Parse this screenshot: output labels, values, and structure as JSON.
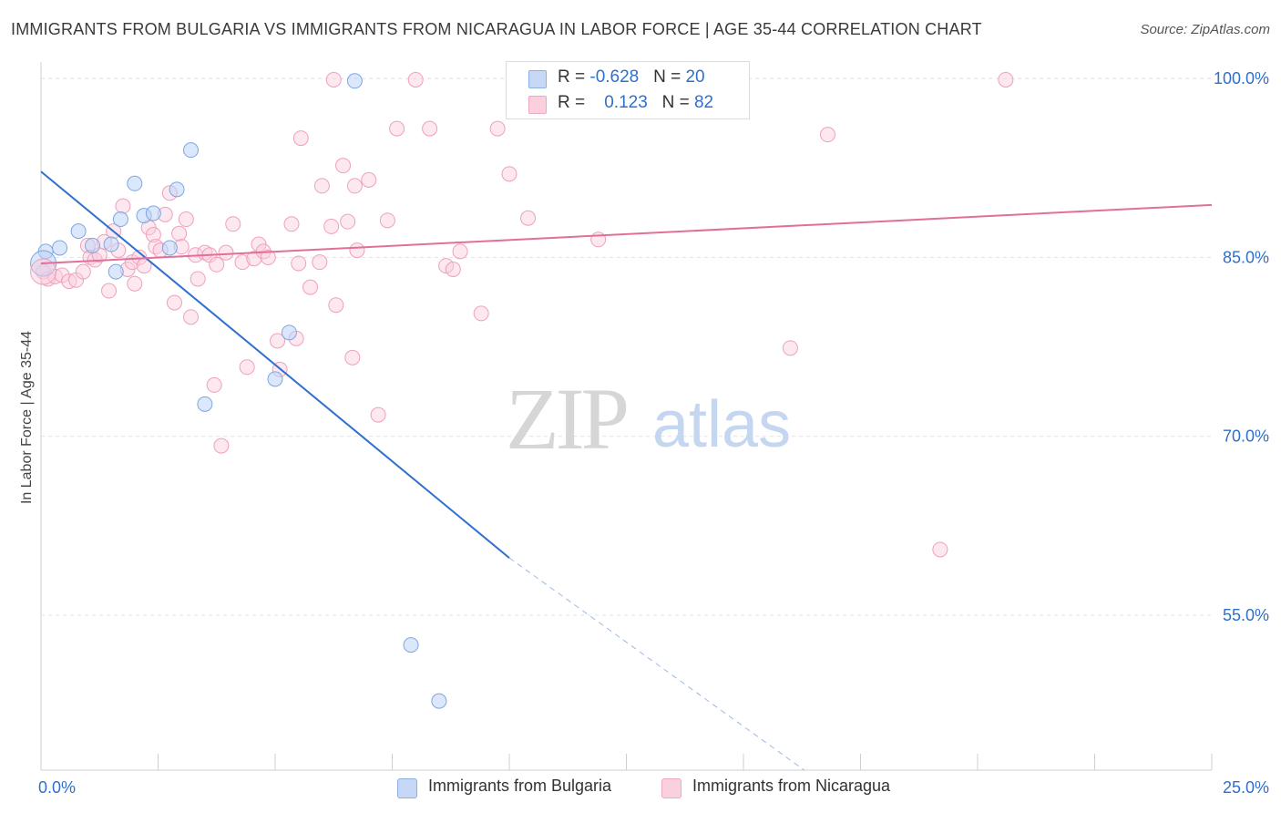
{
  "chart_data": {
    "type": "scatter",
    "title": "IMMIGRANTS FROM BULGARIA VS IMMIGRANTS FROM NICARAGUA IN LABOR FORCE | AGE 35-44 CORRELATION CHART",
    "source": "Source: ZipAtlas.com",
    "watermark": "ZIPatlas",
    "ylabel": "In Labor Force | Age 35-44",
    "xlim": [
      0,
      25
    ],
    "ylim": [
      42,
      102
    ],
    "x_tick_labels": [
      {
        "value": 0,
        "label": "0.0%"
      },
      {
        "value": 25,
        "label": "25.0%"
      }
    ],
    "y_tick_labels": [
      {
        "value": 55,
        "label": "55.0%"
      },
      {
        "value": 70,
        "label": "70.0%"
      },
      {
        "value": 85,
        "label": "85.0%"
      },
      {
        "value": 100,
        "label": "100.0%"
      }
    ],
    "grid": true,
    "legend_placement": "top-center",
    "series": [
      {
        "name": "Immigrants from Bulgaria",
        "color": "#8ab0e6",
        "line_color": "#2f6fce",
        "r": "-0.628",
        "n": "20",
        "trend": {
          "x0": 0,
          "y0": 92.2,
          "x1": 10,
          "y1": 59.8,
          "dash_to_x": 16.3,
          "dash_to_y": 42.0
        },
        "points": [
          [
            0.1,
            85.5
          ],
          [
            0.4,
            85.8
          ],
          [
            0.8,
            87.2
          ],
          [
            1.1,
            86.0
          ],
          [
            1.5,
            86.1
          ],
          [
            1.6,
            83.8
          ],
          [
            1.7,
            88.2
          ],
          [
            2.0,
            91.2
          ],
          [
            2.2,
            88.5
          ],
          [
            2.4,
            88.7
          ],
          [
            2.75,
            85.8
          ],
          [
            2.9,
            90.7
          ],
          [
            3.2,
            94.0
          ],
          [
            3.5,
            72.7
          ],
          [
            5.0,
            74.8
          ],
          [
            5.3,
            78.7
          ],
          [
            6.7,
            99.8
          ],
          [
            7.9,
            52.5
          ],
          [
            8.5,
            47.8
          ],
          [
            0.05,
            84.5
          ]
        ]
      },
      {
        "name": "Immigrants from Nicaragua",
        "color": "#f2a6c0",
        "line_color": "#e0709a",
        "r": "0.123",
        "n": "82",
        "trend": {
          "x0": 0,
          "y0": 84.5,
          "x1": 25,
          "y1": 89.4
        },
        "points": [
          [
            0.05,
            83.8
          ],
          [
            0.15,
            83.2
          ],
          [
            0.3,
            83.4
          ],
          [
            0.45,
            83.5
          ],
          [
            0.6,
            83.0
          ],
          [
            0.75,
            83.1
          ],
          [
            0.9,
            83.8
          ],
          [
            1.0,
            86.0
          ],
          [
            1.05,
            85.0
          ],
          [
            1.15,
            84.8
          ],
          [
            1.25,
            85.2
          ],
          [
            1.35,
            86.3
          ],
          [
            1.45,
            82.2
          ],
          [
            1.55,
            87.2
          ],
          [
            1.65,
            85.6
          ],
          [
            1.75,
            89.3
          ],
          [
            1.85,
            84.0
          ],
          [
            1.95,
            84.6
          ],
          [
            2.0,
            82.8
          ],
          [
            2.1,
            85.0
          ],
          [
            2.2,
            84.3
          ],
          [
            2.3,
            87.5
          ],
          [
            2.4,
            86.9
          ],
          [
            2.45,
            85.9
          ],
          [
            2.55,
            85.6
          ],
          [
            2.65,
            88.6
          ],
          [
            2.75,
            90.4
          ],
          [
            2.85,
            81.2
          ],
          [
            2.95,
            87.0
          ],
          [
            3.0,
            85.9
          ],
          [
            3.1,
            88.2
          ],
          [
            3.2,
            80.0
          ],
          [
            3.3,
            85.2
          ],
          [
            3.35,
            83.2
          ],
          [
            3.5,
            85.4
          ],
          [
            3.6,
            85.2
          ],
          [
            3.7,
            74.3
          ],
          [
            3.75,
            84.4
          ],
          [
            3.85,
            69.2
          ],
          [
            3.95,
            85.4
          ],
          [
            4.1,
            87.8
          ],
          [
            4.3,
            84.6
          ],
          [
            4.4,
            75.8
          ],
          [
            4.55,
            84.9
          ],
          [
            4.65,
            86.1
          ],
          [
            4.75,
            85.5
          ],
          [
            4.85,
            85.0
          ],
          [
            5.05,
            78.0
          ],
          [
            5.1,
            75.6
          ],
          [
            5.35,
            87.8
          ],
          [
            5.45,
            78.2
          ],
          [
            5.5,
            84.5
          ],
          [
            5.55,
            95.0
          ],
          [
            5.75,
            82.5
          ],
          [
            5.95,
            84.6
          ],
          [
            6.0,
            91.0
          ],
          [
            6.2,
            87.6
          ],
          [
            6.3,
            81.0
          ],
          [
            6.45,
            92.7
          ],
          [
            6.55,
            88.0
          ],
          [
            6.65,
            76.6
          ],
          [
            6.7,
            91.0
          ],
          [
            6.75,
            85.6
          ],
          [
            7.0,
            91.5
          ],
          [
            7.2,
            71.8
          ],
          [
            7.4,
            88.1
          ],
          [
            7.6,
            95.8
          ],
          [
            8.0,
            99.9
          ],
          [
            8.3,
            95.8
          ],
          [
            8.65,
            84.3
          ],
          [
            8.8,
            84.0
          ],
          [
            8.95,
            85.5
          ],
          [
            9.4,
            80.3
          ],
          [
            9.75,
            95.8
          ],
          [
            10.0,
            92.0
          ],
          [
            10.4,
            88.3
          ],
          [
            11.9,
            86.5
          ],
          [
            6.25,
            99.9
          ],
          [
            16.0,
            77.4
          ],
          [
            16.8,
            95.3
          ],
          [
            19.2,
            60.5
          ],
          [
            20.6,
            99.9
          ]
        ]
      }
    ]
  }
}
